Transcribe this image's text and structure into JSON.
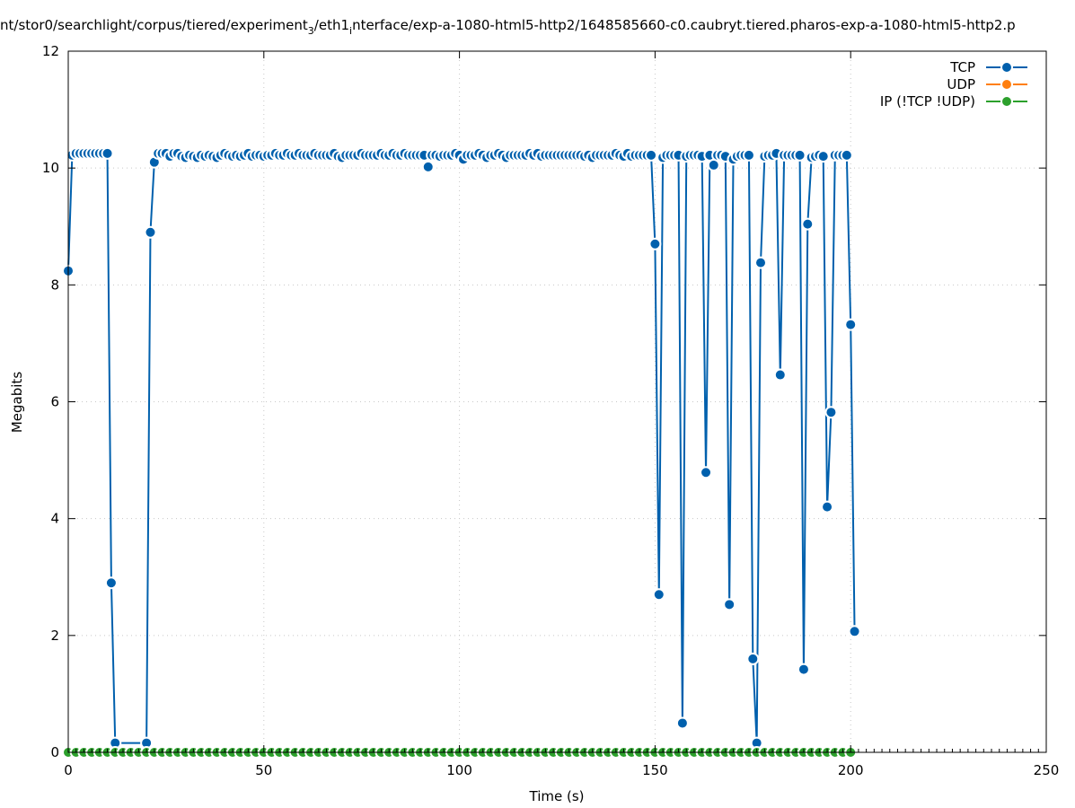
{
  "chart_data": {
    "type": "line",
    "title": "nt/stor0/searchlight/corpus/tiered/experiment",
    "title_sub1": "3",
    "title_mid": "/eth1",
    "title_sub2": "i",
    "title_end": "nterface/exp-a-1080-html5-http2/1648585660-c0.caubryt.tiered.pharos-exp-a-1080-html5-http2.p",
    "xlabel": "Time (s)",
    "ylabel": "Megabits",
    "xlim": [
      0,
      250
    ],
    "ylim": [
      0,
      12
    ],
    "x_ticks": [
      0,
      50,
      100,
      150,
      200,
      250
    ],
    "y_ticks": [
      0,
      2,
      4,
      6,
      8,
      10,
      12
    ],
    "grid": true,
    "legend_position": "top-right",
    "series": [
      {
        "name": "TCP",
        "color": "#0060ad",
        "points": [
          [
            0,
            8.24
          ],
          [
            1,
            10.22
          ],
          [
            2,
            10.25
          ],
          [
            3,
            10.25
          ],
          [
            4,
            10.25
          ],
          [
            5,
            10.25
          ],
          [
            6,
            10.25
          ],
          [
            7,
            10.25
          ],
          [
            8,
            10.25
          ],
          [
            9,
            10.25
          ],
          [
            10,
            10.25
          ],
          [
            11,
            2.9
          ],
          [
            12,
            0.16
          ],
          [
            20,
            0.16
          ],
          [
            21,
            8.9
          ],
          [
            22,
            10.1
          ],
          [
            23,
            10.25
          ],
          [
            24,
            10.25
          ],
          [
            25,
            10.25
          ],
          [
            26,
            10.2
          ],
          [
            27,
            10.25
          ],
          [
            28,
            10.25
          ],
          [
            29,
            10.2
          ],
          [
            30,
            10.18
          ],
          [
            31,
            10.22
          ],
          [
            32,
            10.2
          ],
          [
            33,
            10.18
          ],
          [
            34,
            10.22
          ],
          [
            35,
            10.2
          ],
          [
            36,
            10.22
          ],
          [
            37,
            10.2
          ],
          [
            38,
            10.18
          ],
          [
            39,
            10.22
          ],
          [
            40,
            10.25
          ],
          [
            41,
            10.22
          ],
          [
            42,
            10.2
          ],
          [
            43,
            10.22
          ],
          [
            44,
            10.2
          ],
          [
            45,
            10.22
          ],
          [
            46,
            10.25
          ],
          [
            47,
            10.2
          ],
          [
            48,
            10.22
          ],
          [
            49,
            10.22
          ],
          [
            50,
            10.2
          ],
          [
            51,
            10.22
          ],
          [
            52,
            10.22
          ],
          [
            53,
            10.25
          ],
          [
            54,
            10.22
          ],
          [
            55,
            10.22
          ],
          [
            56,
            10.25
          ],
          [
            57,
            10.22
          ],
          [
            58,
            10.22
          ],
          [
            59,
            10.25
          ],
          [
            60,
            10.22
          ],
          [
            61,
            10.22
          ],
          [
            62,
            10.22
          ],
          [
            63,
            10.25
          ],
          [
            64,
            10.22
          ],
          [
            65,
            10.22
          ],
          [
            66,
            10.22
          ],
          [
            67,
            10.22
          ],
          [
            68,
            10.25
          ],
          [
            69,
            10.2
          ],
          [
            70,
            10.18
          ],
          [
            71,
            10.22
          ],
          [
            72,
            10.22
          ],
          [
            73,
            10.22
          ],
          [
            74,
            10.22
          ],
          [
            75,
            10.25
          ],
          [
            76,
            10.22
          ],
          [
            77,
            10.22
          ],
          [
            78,
            10.22
          ],
          [
            79,
            10.22
          ],
          [
            80,
            10.25
          ],
          [
            81,
            10.22
          ],
          [
            82,
            10.22
          ],
          [
            83,
            10.25
          ],
          [
            84,
            10.22
          ],
          [
            85,
            10.22
          ],
          [
            86,
            10.25
          ],
          [
            87,
            10.22
          ],
          [
            88,
            10.22
          ],
          [
            89,
            10.22
          ],
          [
            90,
            10.22
          ],
          [
            91,
            10.22
          ],
          [
            92,
            10.02
          ],
          [
            93,
            10.22
          ],
          [
            94,
            10.22
          ],
          [
            95,
            10.2
          ],
          [
            96,
            10.22
          ],
          [
            97,
            10.22
          ],
          [
            98,
            10.22
          ],
          [
            99,
            10.25
          ],
          [
            100,
            10.22
          ],
          [
            101,
            10.15
          ],
          [
            102,
            10.22
          ],
          [
            103,
            10.22
          ],
          [
            104,
            10.22
          ],
          [
            105,
            10.25
          ],
          [
            106,
            10.22
          ],
          [
            107,
            10.18
          ],
          [
            108,
            10.22
          ],
          [
            109,
            10.22
          ],
          [
            110,
            10.25
          ],
          [
            111,
            10.22
          ],
          [
            112,
            10.18
          ],
          [
            113,
            10.22
          ],
          [
            114,
            10.22
          ],
          [
            115,
            10.22
          ],
          [
            116,
            10.22
          ],
          [
            117,
            10.22
          ],
          [
            118,
            10.25
          ],
          [
            119,
            10.22
          ],
          [
            120,
            10.25
          ],
          [
            121,
            10.2
          ],
          [
            122,
            10.22
          ],
          [
            123,
            10.22
          ],
          [
            124,
            10.22
          ],
          [
            125,
            10.22
          ],
          [
            126,
            10.22
          ],
          [
            127,
            10.22
          ],
          [
            128,
            10.22
          ],
          [
            129,
            10.22
          ],
          [
            130,
            10.22
          ],
          [
            131,
            10.22
          ],
          [
            132,
            10.2
          ],
          [
            133,
            10.22
          ],
          [
            134,
            10.18
          ],
          [
            135,
            10.22
          ],
          [
            136,
            10.22
          ],
          [
            137,
            10.22
          ],
          [
            138,
            10.22
          ],
          [
            139,
            10.22
          ],
          [
            140,
            10.25
          ],
          [
            141,
            10.22
          ],
          [
            142,
            10.2
          ],
          [
            143,
            10.25
          ],
          [
            144,
            10.2
          ],
          [
            145,
            10.22
          ],
          [
            146,
            10.22
          ],
          [
            147,
            10.22
          ],
          [
            148,
            10.22
          ],
          [
            149,
            10.22
          ],
          [
            150,
            8.7
          ],
          [
            151,
            2.7
          ],
          [
            152,
            10.18
          ],
          [
            153,
            10.22
          ],
          [
            154,
            10.22
          ],
          [
            155,
            10.22
          ],
          [
            156,
            10.22
          ],
          [
            157,
            0.5
          ],
          [
            158,
            10.2
          ],
          [
            159,
            10.22
          ],
          [
            160,
            10.22
          ],
          [
            161,
            10.22
          ],
          [
            162,
            10.2
          ],
          [
            163,
            4.79
          ],
          [
            164,
            10.22
          ],
          [
            165,
            10.05
          ],
          [
            166,
            10.22
          ],
          [
            167,
            10.22
          ],
          [
            168,
            10.2
          ],
          [
            169,
            2.53
          ],
          [
            170,
            10.15
          ],
          [
            171,
            10.2
          ],
          [
            172,
            10.22
          ],
          [
            173,
            10.22
          ],
          [
            174,
            10.22
          ],
          [
            175,
            1.6
          ],
          [
            176,
            0.16
          ],
          [
            177,
            8.38
          ],
          [
            178,
            10.2
          ],
          [
            179,
            10.22
          ],
          [
            180,
            10.22
          ],
          [
            181,
            10.25
          ],
          [
            182,
            6.46
          ],
          [
            183,
            10.22
          ],
          [
            184,
            10.22
          ],
          [
            185,
            10.22
          ],
          [
            186,
            10.22
          ],
          [
            187,
            10.22
          ],
          [
            188,
            1.42
          ],
          [
            189,
            9.04
          ],
          [
            190,
            10.18
          ],
          [
            191,
            10.2
          ],
          [
            192,
            10.22
          ],
          [
            193,
            10.2
          ],
          [
            194,
            4.2
          ],
          [
            195,
            5.82
          ],
          [
            196,
            10.22
          ],
          [
            197,
            10.22
          ],
          [
            198,
            10.22
          ],
          [
            199,
            10.22
          ],
          [
            200,
            7.32
          ],
          [
            201,
            2.07
          ]
        ]
      },
      {
        "name": "UDP",
        "color": "#ff7f0e",
        "points": []
      },
      {
        "name": "IP (!TCP  !UDP)",
        "color": "#2ca02c",
        "points": [
          [
            0,
            0
          ],
          [
            2,
            0
          ],
          [
            4,
            0
          ],
          [
            6,
            0
          ],
          [
            8,
            0
          ],
          [
            10,
            0
          ],
          [
            12,
            0
          ],
          [
            14,
            0
          ],
          [
            16,
            0
          ],
          [
            18,
            0
          ],
          [
            20,
            0
          ],
          [
            22,
            0
          ],
          [
            24,
            0
          ],
          [
            26,
            0
          ],
          [
            28,
            0
          ],
          [
            30,
            0
          ],
          [
            32,
            0
          ],
          [
            34,
            0
          ],
          [
            36,
            0
          ],
          [
            38,
            0
          ],
          [
            40,
            0
          ],
          [
            42,
            0
          ],
          [
            44,
            0
          ],
          [
            46,
            0
          ],
          [
            48,
            0
          ],
          [
            50,
            0
          ],
          [
            52,
            0
          ],
          [
            54,
            0
          ],
          [
            56,
            0
          ],
          [
            58,
            0
          ],
          [
            60,
            0
          ],
          [
            62,
            0
          ],
          [
            64,
            0
          ],
          [
            66,
            0
          ],
          [
            68,
            0
          ],
          [
            70,
            0
          ],
          [
            72,
            0
          ],
          [
            74,
            0
          ],
          [
            76,
            0
          ],
          [
            78,
            0
          ],
          [
            80,
            0
          ],
          [
            82,
            0
          ],
          [
            84,
            0
          ],
          [
            86,
            0
          ],
          [
            88,
            0
          ],
          [
            90,
            0
          ],
          [
            92,
            0
          ],
          [
            94,
            0
          ],
          [
            96,
            0
          ],
          [
            98,
            0
          ],
          [
            100,
            0
          ],
          [
            102,
            0
          ],
          [
            104,
            0
          ],
          [
            106,
            0
          ],
          [
            108,
            0
          ],
          [
            110,
            0
          ],
          [
            112,
            0
          ],
          [
            114,
            0
          ],
          [
            116,
            0
          ],
          [
            118,
            0
          ],
          [
            120,
            0
          ],
          [
            122,
            0
          ],
          [
            124,
            0
          ],
          [
            126,
            0
          ],
          [
            128,
            0
          ],
          [
            130,
            0
          ],
          [
            132,
            0
          ],
          [
            134,
            0
          ],
          [
            136,
            0
          ],
          [
            138,
            0
          ],
          [
            140,
            0
          ],
          [
            142,
            0
          ],
          [
            144,
            0
          ],
          [
            146,
            0
          ],
          [
            148,
            0
          ],
          [
            150,
            0
          ],
          [
            152,
            0
          ],
          [
            154,
            0
          ],
          [
            156,
            0
          ],
          [
            158,
            0
          ],
          [
            160,
            0
          ],
          [
            162,
            0
          ],
          [
            164,
            0
          ],
          [
            166,
            0
          ],
          [
            168,
            0
          ],
          [
            170,
            0
          ],
          [
            172,
            0
          ],
          [
            174,
            0
          ],
          [
            176,
            0
          ],
          [
            178,
            0
          ],
          [
            180,
            0
          ],
          [
            182,
            0
          ],
          [
            184,
            0
          ],
          [
            186,
            0
          ],
          [
            188,
            0
          ],
          [
            190,
            0
          ],
          [
            192,
            0
          ],
          [
            194,
            0
          ],
          [
            196,
            0
          ],
          [
            198,
            0
          ],
          [
            200,
            0
          ]
        ]
      }
    ]
  }
}
